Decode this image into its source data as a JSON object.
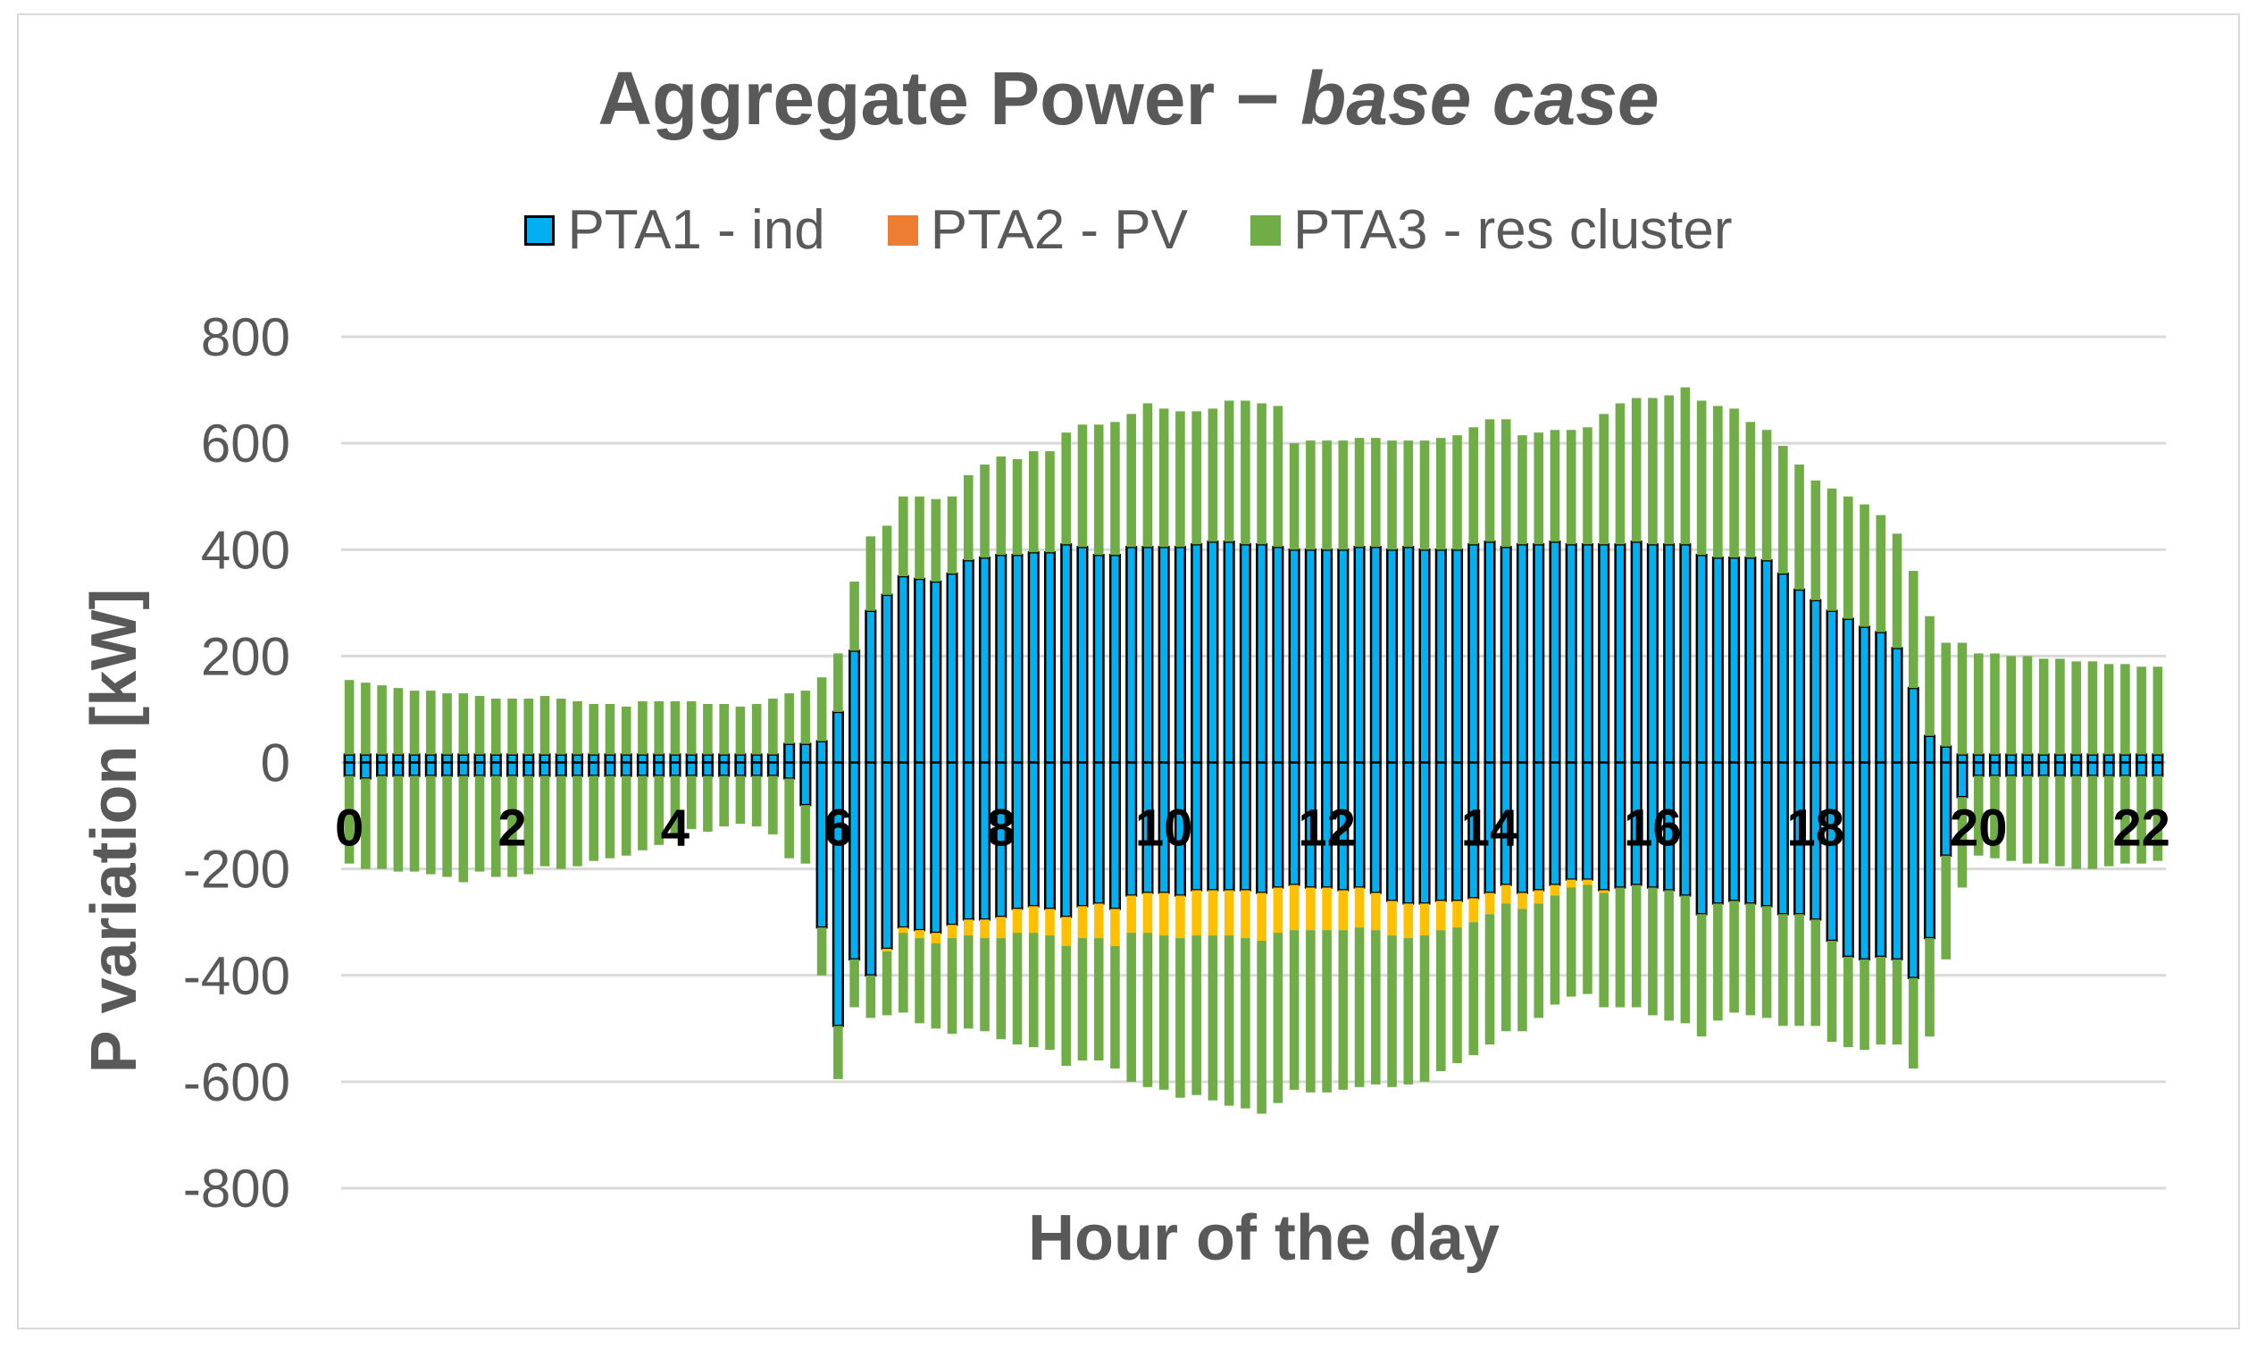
{
  "chart_data": {
    "type": "bar",
    "subtype": "stacked",
    "title_main": "Aggregate Power −",
    "title_italic": "base case",
    "xlabel": "Hour of the day",
    "ylabel": "P variation [kW]",
    "ylim": [
      -800,
      800
    ],
    "yticks": [
      "800",
      "600",
      "400",
      "200",
      "0",
      "-200",
      "-400",
      "-600",
      "-800"
    ],
    "yticks_values": [
      800,
      600,
      400,
      200,
      0,
      -200,
      -400,
      -600,
      -800
    ],
    "xticks": [
      "0",
      "2",
      "4",
      "6",
      "8",
      "10",
      "12",
      "14",
      "16",
      "18",
      "20",
      "22"
    ],
    "xticks_values": [
      0,
      2,
      4,
      6,
      8,
      10,
      12,
      14,
      16,
      18,
      20,
      22
    ],
    "interval_hours": 0.2,
    "grid": true,
    "legend_position": "top-center",
    "colors": {
      "pta1": "#00b0f0",
      "pta1_edge": "#000000",
      "pta2": "#ffc000",
      "pta2_legend": "#ed7d31",
      "pta3": "#70ad47",
      "grid": "#d9d9d9",
      "text": "#595959"
    },
    "legend": [
      {
        "name": "PTA1 - ind",
        "color": "#00b0f0",
        "edge": "#000000"
      },
      {
        "name": "PTA2 - PV",
        "color": "#ed7d31",
        "edge": "none"
      },
      {
        "name": "PTA3 - res cluster",
        "color": "#70ad47",
        "edge": "none"
      }
    ],
    "series": [
      {
        "name": "PTA1 - ind",
        "pos": [
          15,
          15,
          15,
          15,
          15,
          15,
          15,
          15,
          15,
          15,
          15,
          15,
          15,
          15,
          15,
          15,
          15,
          15,
          15,
          15,
          15,
          15,
          15,
          15,
          15,
          15,
          15,
          35,
          35,
          40,
          95,
          210,
          285,
          315,
          350,
          345,
          340,
          355,
          380,
          385,
          390,
          390,
          395,
          395,
          410,
          405,
          390,
          390,
          405,
          405,
          405,
          405,
          410,
          415,
          415,
          410,
          410,
          405,
          400,
          400,
          400,
          400,
          405,
          405,
          400,
          405,
          400,
          400,
          400,
          410,
          415,
          405,
          410,
          410,
          415,
          410,
          410,
          410,
          410,
          415,
          410,
          410,
          410,
          390,
          385,
          385,
          385,
          380,
          355,
          325,
          305,
          285,
          270,
          255,
          245,
          215,
          140,
          50,
          30,
          15,
          15,
          15,
          15,
          15,
          15,
          15,
          15,
          15,
          15,
          15,
          15,
          15
        ],
        "neg": [
          -25,
          -30,
          -25,
          -25,
          -25,
          -25,
          -25,
          -25,
          -25,
          -25,
          -25,
          -25,
          -25,
          -25,
          -25,
          -25,
          -25,
          -25,
          -25,
          -25,
          -25,
          -25,
          -25,
          -25,
          -25,
          -25,
          -25,
          -30,
          -80,
          -310,
          -495,
          -370,
          -400,
          -350,
          -310,
          -315,
          -320,
          -305,
          -295,
          -295,
          -290,
          -275,
          -270,
          -275,
          -290,
          -270,
          -265,
          -275,
          -250,
          -245,
          -245,
          -250,
          -240,
          -240,
          -240,
          -240,
          -245,
          -235,
          -230,
          -235,
          -235,
          -240,
          -235,
          -245,
          -260,
          -265,
          -265,
          -260,
          -260,
          -255,
          -245,
          -230,
          -245,
          -240,
          -230,
          -220,
          -220,
          -240,
          -235,
          -230,
          -235,
          -240,
          -250,
          -285,
          -265,
          -260,
          -265,
          -270,
          -285,
          -285,
          -295,
          -335,
          -365,
          -370,
          -365,
          -370,
          -405,
          -330,
          -175,
          -65,
          -25,
          -25,
          -25,
          -25,
          -25,
          -25,
          -25,
          -25,
          -25,
          -25,
          -25,
          -25
        ]
      },
      {
        "name": "PTA2 - PV",
        "pos": [
          0,
          0,
          0,
          0,
          0,
          0,
          0,
          0,
          0,
          0,
          0,
          0,
          0,
          0,
          0,
          0,
          0,
          0,
          0,
          0,
          0,
          0,
          0,
          0,
          0,
          0,
          0,
          0,
          0,
          0,
          0,
          0,
          0,
          0,
          0,
          0,
          0,
          0,
          0,
          0,
          0,
          0,
          0,
          0,
          0,
          0,
          0,
          0,
          0,
          0,
          0,
          0,
          0,
          0,
          0,
          0,
          0,
          0,
          0,
          0,
          0,
          0,
          0,
          0,
          0,
          0,
          0,
          0,
          0,
          0,
          0,
          0,
          0,
          0,
          0,
          0,
          0,
          0,
          0,
          0,
          0,
          0,
          0,
          0,
          0,
          0,
          0,
          0,
          0,
          0,
          0,
          0,
          0,
          0,
          0,
          0,
          0,
          0,
          0,
          0,
          0,
          0,
          0,
          0,
          0,
          0,
          0,
          0,
          0,
          0,
          0,
          0
        ],
        "neg": [
          0,
          0,
          0,
          0,
          0,
          0,
          0,
          0,
          0,
          0,
          0,
          0,
          0,
          0,
          0,
          0,
          0,
          0,
          0,
          0,
          0,
          0,
          0,
          0,
          0,
          0,
          0,
          0,
          0,
          0,
          0,
          0,
          0,
          5,
          10,
          15,
          20,
          25,
          30,
          35,
          40,
          45,
          50,
          50,
          55,
          60,
          65,
          70,
          70,
          75,
          80,
          80,
          85,
          85,
          85,
          90,
          90,
          85,
          85,
          80,
          80,
          75,
          75,
          70,
          65,
          65,
          60,
          55,
          50,
          45,
          40,
          35,
          30,
          25,
          20,
          15,
          10,
          5,
          0,
          0,
          0,
          0,
          0,
          0,
          0,
          0,
          0,
          0,
          0,
          0,
          0,
          0,
          0,
          0,
          0,
          0,
          0,
          0,
          0,
          0,
          0,
          0,
          0,
          0,
          0,
          0,
          0,
          0,
          0,
          0,
          0,
          0
        ]
      },
      {
        "name": "PTA3 - res cluster",
        "pos": [
          140,
          135,
          130,
          125,
          120,
          120,
          115,
          115,
          110,
          105,
          105,
          105,
          110,
          105,
          100,
          95,
          95,
          90,
          100,
          100,
          100,
          100,
          95,
          95,
          90,
          95,
          105,
          95,
          100,
          120,
          110,
          130,
          140,
          130,
          150,
          155,
          155,
          145,
          160,
          175,
          185,
          180,
          190,
          190,
          210,
          230,
          245,
          250,
          250,
          270,
          260,
          255,
          250,
          250,
          265,
          270,
          265,
          265,
          200,
          205,
          205,
          205,
          205,
          205,
          205,
          200,
          205,
          210,
          215,
          220,
          230,
          240,
          205,
          210,
          210,
          215,
          220,
          245,
          265,
          270,
          275,
          280,
          295,
          290,
          285,
          280,
          255,
          245,
          240,
          235,
          225,
          230,
          230,
          230,
          220,
          215,
          220,
          225,
          195,
          210,
          190,
          190,
          185,
          185,
          180,
          180,
          175,
          175,
          170,
          170,
          165,
          165
        ],
        "neg": [
          -165,
          -170,
          -175,
          -180,
          -180,
          -185,
          -190,
          -200,
          -180,
          -190,
          -190,
          -185,
          -170,
          -175,
          -170,
          -160,
          -155,
          -150,
          -140,
          -130,
          -110,
          -100,
          -105,
          -95,
          -90,
          -95,
          -110,
          -150,
          -110,
          -90,
          -100,
          -90,
          -80,
          -120,
          -150,
          -160,
          -160,
          -180,
          -175,
          -175,
          -190,
          -210,
          -215,
          -215,
          -225,
          -230,
          -230,
          -230,
          -280,
          -290,
          -290,
          -300,
          -300,
          -310,
          -320,
          -320,
          -325,
          -320,
          -300,
          -305,
          -305,
          -300,
          -300,
          -290,
          -285,
          -275,
          -275,
          -265,
          -255,
          -250,
          -245,
          -240,
          -230,
          -215,
          -205,
          -205,
          -205,
          -215,
          -225,
          -230,
          -240,
          -245,
          -240,
          -230,
          -220,
          -210,
          -210,
          -210,
          -210,
          -210,
          -200,
          -190,
          -170,
          -170,
          -165,
          -160,
          -170,
          -185,
          -195,
          -170,
          -150,
          -155,
          -160,
          -165,
          -165,
          -170,
          -175,
          -175,
          -170,
          -165,
          -165,
          -160
        ]
      }
    ]
  }
}
